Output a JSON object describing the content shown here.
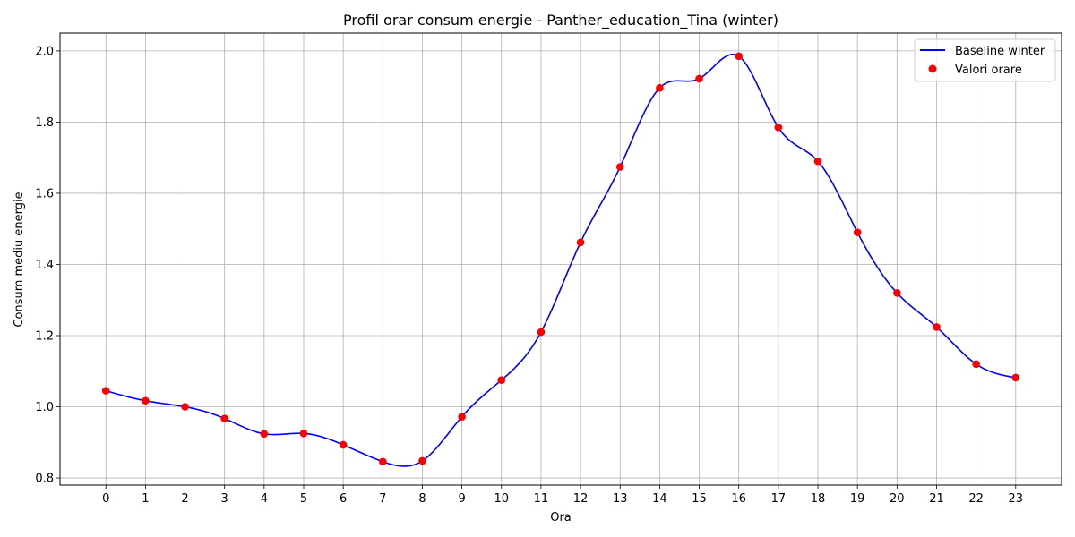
{
  "chart_data": {
    "type": "line",
    "title": "Profil orar consum energie - Panther_education_Tina (winter)",
    "xlabel": "Ora",
    "ylabel": "Consum mediu energie",
    "x": [
      0,
      1,
      2,
      3,
      4,
      5,
      6,
      7,
      8,
      9,
      10,
      11,
      12,
      13,
      14,
      15,
      16,
      17,
      18,
      19,
      20,
      21,
      22,
      23
    ],
    "xlim": [
      -1.16,
      24.16
    ],
    "ylim": [
      0.78,
      2.05
    ],
    "yticks": [
      0.8,
      1.0,
      1.2,
      1.4,
      1.6,
      1.8,
      2.0
    ],
    "grid": true,
    "legend_position": "top-right",
    "series": [
      {
        "name": "Baseline winter",
        "kind": "line",
        "color": "#0000ff",
        "values": [
          1.045,
          1.017,
          1.0,
          0.967,
          0.924,
          0.925,
          0.893,
          0.846,
          0.848,
          0.972,
          1.075,
          1.21,
          1.462,
          1.674,
          1.896,
          1.922,
          1.985,
          1.785,
          1.69,
          1.49,
          1.32,
          1.224,
          1.12,
          1.082
        ]
      },
      {
        "name": "Valori orare",
        "kind": "scatter",
        "color": "#ff0000",
        "values": [
          1.045,
          1.017,
          1.0,
          0.967,
          0.924,
          0.925,
          0.893,
          0.846,
          0.848,
          0.972,
          1.075,
          1.21,
          1.462,
          1.674,
          1.896,
          1.922,
          1.985,
          1.785,
          1.69,
          1.49,
          1.32,
          1.224,
          1.12,
          1.082
        ]
      }
    ]
  }
}
